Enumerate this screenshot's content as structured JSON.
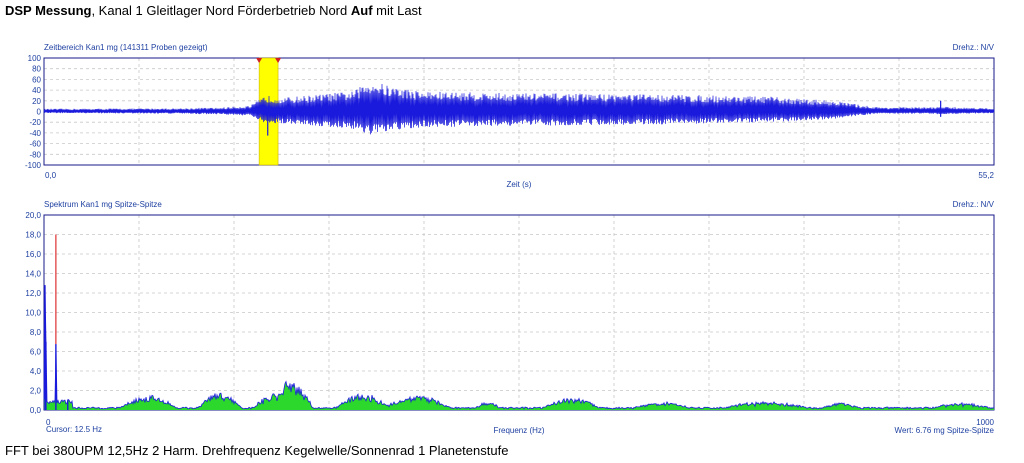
{
  "header": {
    "title_bold": "DSP Messung",
    "title_mid": ", Kanal 1 Gleitlager Nord  Förderbetrieb Nord ",
    "title_bold2": "Auf",
    "title_end": " mit Last"
  },
  "footer": {
    "caption": "FFT bei 380UPM 12,5Hz  2 Harm. Drehfrequenz Kegelwelle/Sonnenrad 1 Planetenstufe"
  },
  "chart_data": [
    {
      "type": "line",
      "title": "Zeitbereich Kan1 mg (141311 Proben gezeigt)",
      "right_label": "Drehz.: N/V",
      "xlabel": "Zeit (s)",
      "x_start_label": "0,0",
      "x_end_label": "55,2",
      "xlim": [
        0,
        55.2
      ],
      "ylim": [
        -100,
        100
      ],
      "y_ticks": [
        "100",
        "80",
        "60",
        "40",
        "20",
        "0",
        "-20",
        "-40",
        "-60",
        "-80",
        "-100"
      ],
      "series_color": "#1a1adc",
      "marker_color": "#ffff00",
      "envelope": {
        "t": [
          0,
          8,
          9.2,
          10,
          12,
          12.9,
          14,
          16,
          18,
          19,
          20,
          22,
          26,
          30,
          36,
          42,
          46,
          47.5,
          48.5,
          51.5,
          52,
          55.2
        ],
        "upper": [
          5,
          6,
          7,
          7,
          11,
          30,
          26,
          32,
          38,
          60,
          48,
          38,
          35,
          34,
          32,
          28,
          20,
          12,
          8,
          8,
          9,
          6
        ],
        "lower": [
          -3,
          -4,
          -5,
          -5,
          -8,
          -25,
          -22,
          -28,
          -33,
          -45,
          -38,
          -30,
          -27,
          -26,
          -24,
          -20,
          -14,
          -7,
          -4,
          -4,
          -5,
          -3
        ]
      }
    },
    {
      "type": "area",
      "title": "Spektrum Kan1 mg Spitze-Spitze",
      "right_label": "Drehz.: N/V",
      "xlabel": "Frequenz (Hz)",
      "x_start_label": "0",
      "x_end_label": "1000",
      "cursor_label": "Cursor: 12.5 Hz",
      "value_label": "Wert: 6.76 mg Spitze-Spitze",
      "xlim": [
        0,
        1000
      ],
      "ylim": [
        0,
        20
      ],
      "y_ticks": [
        "20,0",
        "18,0",
        "16,0",
        "14,0",
        "12,0",
        "10,0",
        "8,0",
        "6,0",
        "4,0",
        "2,0",
        "0,0"
      ],
      "cursor_x": 12.5,
      "cursor_y": 6.76,
      "fill_color": "#2bd82b",
      "line_color": "#1a1adc",
      "cursor_color": "#e03030",
      "peaks": [
        {
          "x": 1,
          "y": 12.8
        },
        {
          "x": 2,
          "y": 7.0
        },
        {
          "x": 12.5,
          "y": 6.76
        },
        {
          "x": 25,
          "y": 1.0
        }
      ],
      "bumps": [
        {
          "center": 110,
          "width": 60,
          "height": 1.3
        },
        {
          "center": 185,
          "width": 45,
          "height": 1.6
        },
        {
          "center": 245,
          "width": 50,
          "height": 1.5
        },
        {
          "center": 265,
          "width": 35,
          "height": 2.3
        },
        {
          "center": 335,
          "width": 55,
          "height": 1.5
        },
        {
          "center": 393,
          "width": 70,
          "height": 1.3
        },
        {
          "center": 467,
          "width": 25,
          "height": 0.6
        },
        {
          "center": 555,
          "width": 60,
          "height": 1.0
        },
        {
          "center": 650,
          "width": 60,
          "height": 0.6
        },
        {
          "center": 760,
          "width": 90,
          "height": 0.6
        },
        {
          "center": 840,
          "width": 40,
          "height": 0.5
        },
        {
          "center": 965,
          "width": 60,
          "height": 0.5
        }
      ]
    }
  ]
}
